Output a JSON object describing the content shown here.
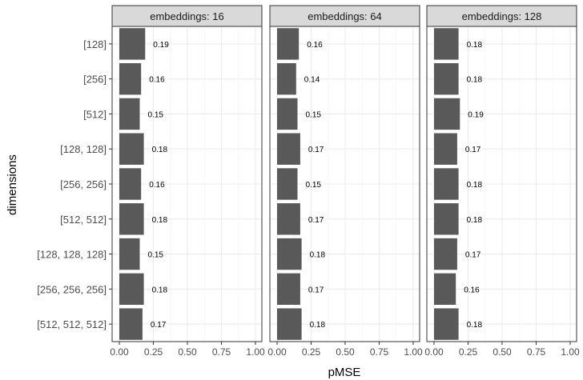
{
  "chart_data": {
    "type": "bar",
    "orientation": "horizontal",
    "facet_label": "embeddings",
    "xlabel": "pMSE",
    "ylabel": "dimensions",
    "xlim": [
      0,
      1
    ],
    "x_ticks": [
      "0.00",
      "0.25",
      "0.50",
      "0.75",
      "1.00"
    ],
    "bar_color": "#595959",
    "grid": true,
    "categories": [
      "[128]",
      "[256]",
      "[512]",
      "[128, 128]",
      "[256, 256]",
      "[512, 512]",
      "[128, 128, 128]",
      "[256, 256, 256]",
      "[512, 512, 512]"
    ],
    "facets": [
      {
        "title": "embeddings: 16",
        "values": [
          0.19,
          0.16,
          0.15,
          0.18,
          0.16,
          0.18,
          0.15,
          0.18,
          0.17
        ]
      },
      {
        "title": "embeddings: 64",
        "values": [
          0.16,
          0.14,
          0.15,
          0.17,
          0.15,
          0.17,
          0.18,
          0.17,
          0.18
        ]
      },
      {
        "title": "embeddings: 128",
        "values": [
          0.18,
          0.18,
          0.19,
          0.17,
          0.18,
          0.18,
          0.17,
          0.16,
          0.18
        ]
      }
    ]
  }
}
